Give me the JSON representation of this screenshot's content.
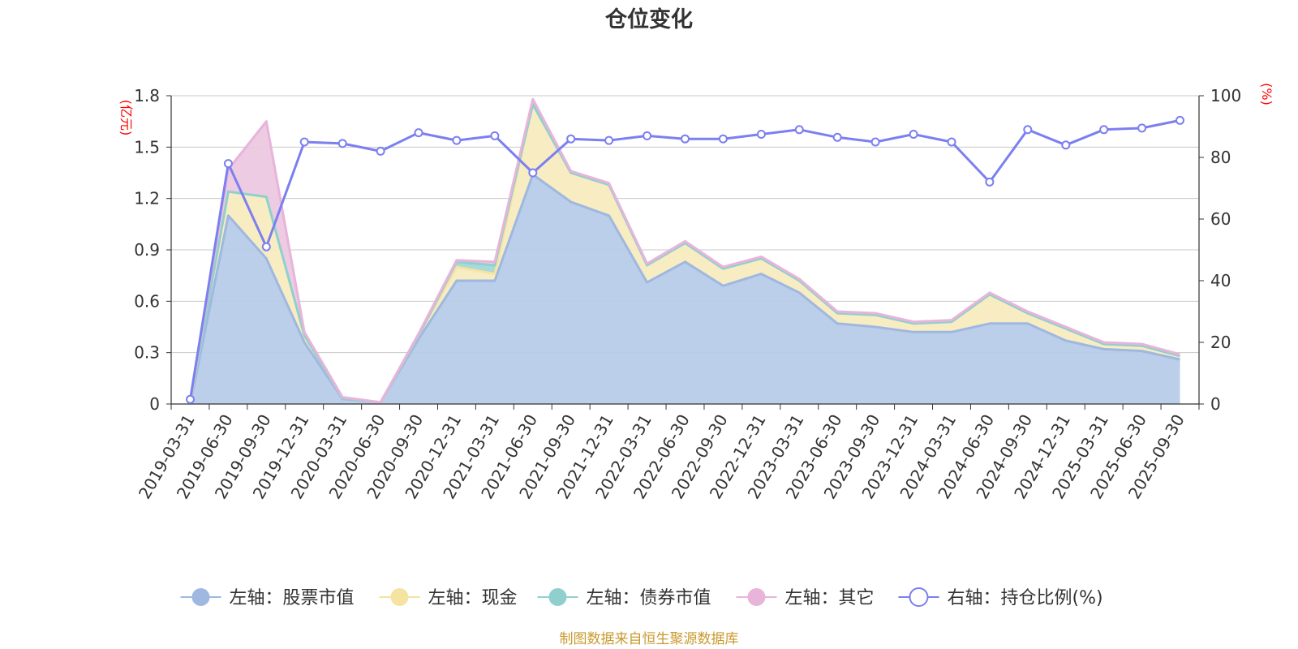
{
  "chart_data": {
    "type": "area",
    "title": "仓位变化",
    "left_axis": {
      "unit": "(亿元)",
      "ticks": [
        "0",
        "0.3",
        "0.6",
        "0.9",
        "1.2",
        "1.5",
        "1.8"
      ],
      "min": 0,
      "max": 1.8
    },
    "right_axis": {
      "unit": "(%)",
      "ticks": [
        "0",
        "20",
        "40",
        "60",
        "80",
        "100"
      ],
      "min": 0,
      "max": 100
    },
    "categories": [
      "2019-03-31",
      "2019-06-30",
      "2019-09-30",
      "2019-12-31",
      "2020-03-31",
      "2020-06-30",
      "2020-09-30",
      "2020-12-31",
      "2021-03-31",
      "2021-06-30",
      "2021-09-30",
      "2021-12-31",
      "2022-03-31",
      "2022-06-30",
      "2022-09-30",
      "2022-12-31",
      "2023-03-31",
      "2023-06-30",
      "2023-09-30",
      "2023-12-31",
      "2024-03-31",
      "2024-06-30",
      "2024-09-30",
      "2024-12-31",
      "2025-03-31",
      "2025-06-30",
      "2025-09-30"
    ],
    "series": [
      {
        "name": "左轴：股票市值",
        "axis": "left",
        "kind": "stack",
        "color": "#9fb8e0",
        "fill": "#b7cbe9",
        "values": [
          0.0,
          1.1,
          0.85,
          0.36,
          0.03,
          0.01,
          0.38,
          0.72,
          0.72,
          1.34,
          1.18,
          1.1,
          0.71,
          0.83,
          0.69,
          0.76,
          0.65,
          0.47,
          0.45,
          0.42,
          0.42,
          0.47,
          0.47,
          0.37,
          0.32,
          0.31,
          0.26
        ]
      },
      {
        "name": "左轴：现金",
        "axis": "left",
        "kind": "stack",
        "color": "#f5e3a1",
        "fill": "#f8ebbf",
        "values": [
          0.01,
          0.14,
          0.36,
          0.04,
          0.005,
          0.0,
          0.02,
          0.08,
          0.04,
          0.41,
          0.17,
          0.18,
          0.1,
          0.11,
          0.1,
          0.09,
          0.07,
          0.06,
          0.07,
          0.05,
          0.06,
          0.17,
          0.06,
          0.07,
          0.03,
          0.03,
          0.02
        ]
      },
      {
        "name": "左轴：债券市值",
        "axis": "left",
        "kind": "stack",
        "color": "#8fd0cf",
        "fill": "#a2d8d6",
        "values": [
          0,
          0,
          0,
          0,
          0,
          0,
          0,
          0.03,
          0.05,
          0,
          0,
          0,
          0,
          0,
          0,
          0,
          0,
          0,
          0,
          0,
          0,
          0,
          0,
          0,
          0,
          0,
          0
        ]
      },
      {
        "name": "左轴：其它",
        "axis": "left",
        "kind": "stack",
        "color": "#e8b4da",
        "fill": "#ecc8e2",
        "values": [
          0.005,
          0.13,
          0.44,
          0.02,
          0.005,
          0.0,
          0.01,
          0.01,
          0.02,
          0.03,
          0.01,
          0.01,
          0.01,
          0.01,
          0.01,
          0.01,
          0.01,
          0.01,
          0.01,
          0.01,
          0.01,
          0.01,
          0.01,
          0.01,
          0.01,
          0.01,
          0.01
        ]
      },
      {
        "name": "右轴：持仓比例(%)",
        "axis": "right",
        "kind": "line",
        "color": "#7b7ff0",
        "values": [
          1.5,
          78,
          51,
          85,
          84.5,
          82,
          88,
          85.5,
          87,
          75,
          86,
          85.5,
          87,
          86,
          86,
          87.5,
          89,
          86.5,
          85,
          87.5,
          85,
          72,
          89,
          84,
          89,
          89.5,
          92
        ]
      }
    ],
    "legend_position": "bottom-center",
    "grid": true,
    "source": "制图数据来自恒生聚源数据库",
    "source_color": "#c99a2e"
  }
}
